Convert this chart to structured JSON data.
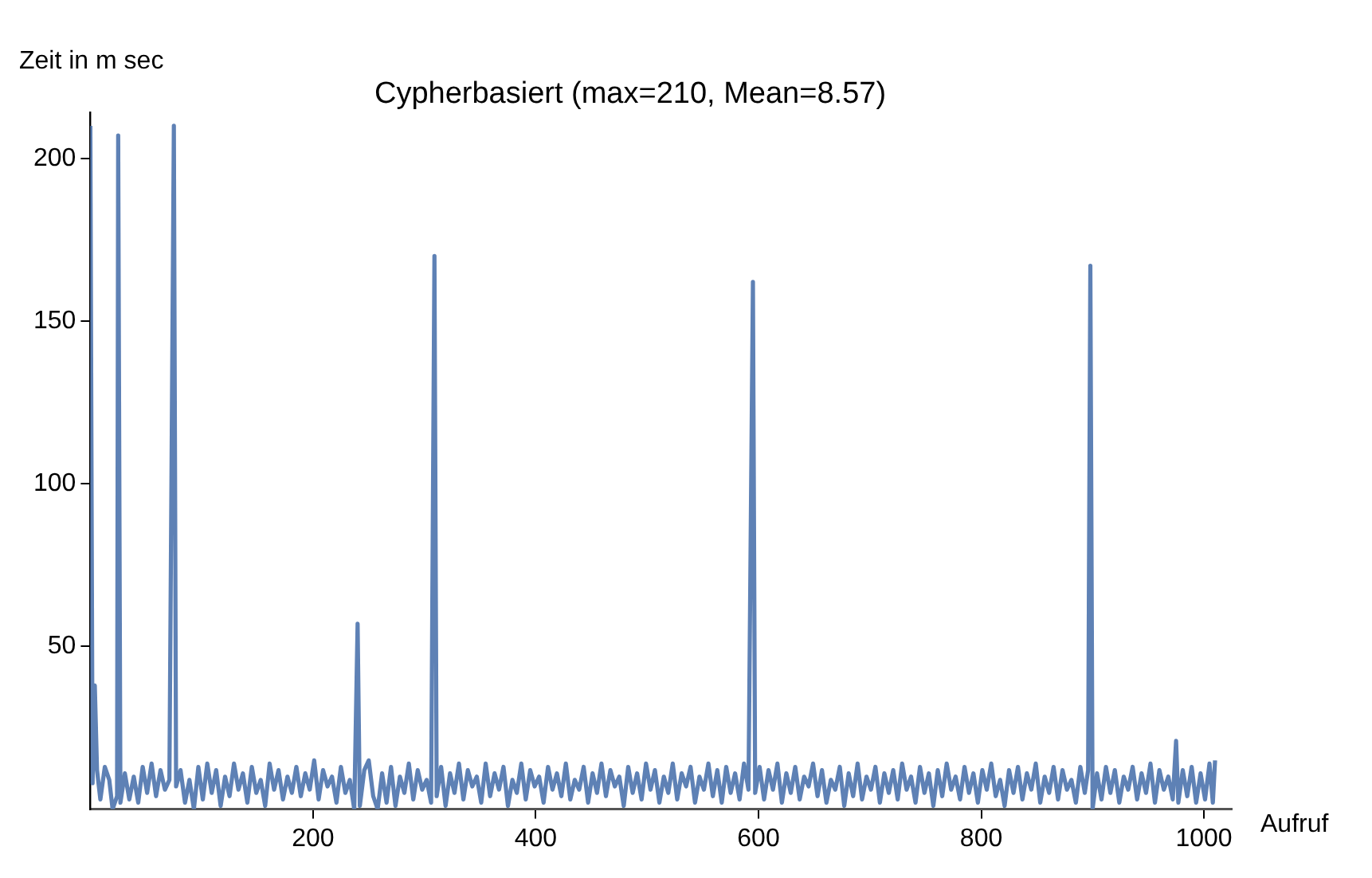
{
  "chart_data": {
    "type": "line",
    "title": "Cypherbasiert (max=210, Mean=8.57)",
    "xlabel": "Aufruf",
    "ylabel": "Zeit in m sec",
    "x": [
      0,
      2,
      4,
      6,
      9,
      13,
      17,
      20,
      24,
      25,
      27,
      31,
      35,
      39,
      43,
      47,
      51,
      55,
      59,
      63,
      67,
      71,
      75,
      77,
      81,
      85,
      89,
      93,
      97,
      101,
      105,
      109,
      113,
      117,
      121,
      125,
      129,
      133,
      137,
      141,
      145,
      149,
      153,
      157,
      161,
      165,
      169,
      173,
      177,
      181,
      185,
      189,
      193,
      197,
      201,
      205,
      209,
      213,
      217,
      221,
      225,
      229,
      233,
      237,
      240,
      242,
      246,
      250,
      254,
      258,
      262,
      266,
      270,
      274,
      278,
      282,
      286,
      290,
      294,
      298,
      302,
      306,
      309,
      311,
      315,
      319,
      323,
      327,
      331,
      335,
      339,
      343,
      347,
      351,
      355,
      359,
      363,
      367,
      371,
      375,
      379,
      383,
      387,
      391,
      395,
      399,
      403,
      407,
      411,
      415,
      419,
      423,
      427,
      431,
      435,
      439,
      443,
      447,
      451,
      455,
      459,
      463,
      467,
      471,
      475,
      479,
      483,
      487,
      491,
      495,
      499,
      503,
      507,
      511,
      515,
      519,
      523,
      527,
      531,
      535,
      539,
      543,
      547,
      551,
      555,
      559,
      563,
      567,
      571,
      575,
      579,
      583,
      587,
      591,
      595,
      597,
      601,
      605,
      609,
      613,
      617,
      621,
      625,
      629,
      633,
      637,
      641,
      645,
      649,
      653,
      657,
      661,
      665,
      669,
      673,
      677,
      681,
      685,
      689,
      693,
      697,
      701,
      705,
      709,
      713,
      717,
      721,
      725,
      729,
      733,
      737,
      741,
      745,
      749,
      753,
      757,
      761,
      765,
      769,
      773,
      777,
      781,
      785,
      789,
      793,
      797,
      801,
      805,
      809,
      813,
      817,
      821,
      825,
      829,
      833,
      837,
      841,
      845,
      849,
      853,
      857,
      861,
      865,
      869,
      873,
      877,
      881,
      885,
      889,
      893,
      896,
      898,
      900,
      904,
      908,
      912,
      916,
      920,
      924,
      928,
      932,
      936,
      940,
      944,
      948,
      952,
      956,
      960,
      964,
      968,
      972,
      975,
      977,
      981,
      985,
      989,
      993,
      997,
      1001,
      1005,
      1008,
      1010
    ],
    "series": [
      {
        "color": "#5e81b5",
        "values": [
          210,
          8,
          38,
          12,
          3,
          13,
          9,
          0,
          4,
          207,
          2,
          11,
          3,
          10,
          2,
          13,
          5,
          14,
          4,
          12,
          6,
          9,
          210,
          7,
          12,
          2,
          9,
          0,
          13,
          3,
          14,
          5,
          12,
          1,
          10,
          4,
          14,
          6,
          11,
          2,
          13,
          5,
          9,
          1,
          14,
          6,
          12,
          3,
          10,
          5,
          13,
          4,
          11,
          6,
          15,
          3,
          12,
          7,
          10,
          2,
          13,
          5,
          9,
          0,
          57,
          1,
          12,
          15,
          4,
          0,
          11,
          2,
          13,
          1,
          10,
          5,
          14,
          3,
          12,
          6,
          9,
          2,
          170,
          4,
          13,
          1,
          11,
          5,
          14,
          3,
          12,
          7,
          10,
          2,
          14,
          4,
          11,
          6,
          13,
          1,
          9,
          5,
          14,
          3,
          12,
          7,
          10,
          2,
          13,
          6,
          11,
          4,
          14,
          3,
          9,
          6,
          13,
          2,
          11,
          5,
          14,
          4,
          12,
          7,
          10,
          1,
          13,
          5,
          11,
          3,
          14,
          6,
          12,
          2,
          10,
          5,
          14,
          3,
          11,
          7,
          13,
          2,
          10,
          6,
          14,
          4,
          12,
          2,
          13,
          5,
          11,
          3,
          14,
          6,
          162,
          5,
          13,
          3,
          12,
          6,
          14,
          2,
          11,
          5,
          13,
          3,
          10,
          7,
          14,
          4,
          12,
          2,
          9,
          6,
          13,
          1,
          11,
          4,
          14,
          3,
          10,
          6,
          13,
          2,
          11,
          5,
          12,
          3,
          14,
          6,
          10,
          2,
          13,
          5,
          11,
          1,
          12,
          4,
          14,
          6,
          10,
          3,
          13,
          5,
          11,
          2,
          12,
          6,
          14,
          4,
          9,
          1,
          12,
          5,
          13,
          3,
          11,
          6,
          14,
          2,
          10,
          5,
          13,
          3,
          12,
          6,
          9,
          2,
          13,
          5,
          12,
          167,
          0,
          11,
          3,
          13,
          5,
          12,
          2,
          10,
          6,
          13,
          3,
          11,
          5,
          14,
          2,
          12,
          6,
          10,
          3,
          21,
          2,
          12,
          4,
          13,
          2,
          11,
          3,
          14,
          2,
          15
        ]
      }
    ],
    "xlim": [
      0,
      1025
    ],
    "xticks": [
      200,
      400,
      600,
      800,
      1000
    ],
    "ylim": [
      0,
      214
    ],
    "yticks": [
      50,
      100,
      150,
      200
    ],
    "grid": false,
    "legend": false,
    "marker": "none",
    "line_style": "solid"
  }
}
